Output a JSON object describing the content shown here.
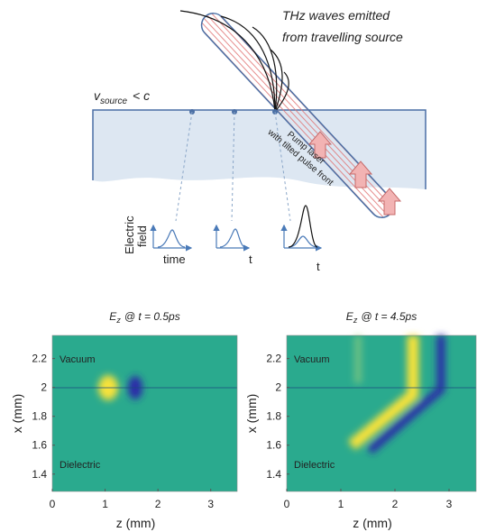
{
  "diagram": {
    "caption_lines": [
      "THz waves emitted",
      "from travelling source"
    ],
    "velocity": {
      "symbol": "v",
      "subscript": "source",
      "relation": "< c"
    },
    "laser_lines": [
      "Pump laser",
      "with tilted pulse front"
    ],
    "field_label_lines": [
      "Electric",
      "field"
    ],
    "time_labels": [
      "time",
      "t",
      "t"
    ]
  },
  "chart_data": [
    {
      "type": "heatmap",
      "title": {
        "symbol": "E",
        "subscript": "z",
        "rest": "@ t = 0.5ps"
      },
      "xlabel": "z (mm)",
      "ylabel": "x (mm)",
      "xlim": [
        0,
        3.5
      ],
      "ylim": [
        1.28,
        2.36
      ],
      "xticks": [
        0,
        1,
        2,
        3
      ],
      "yticks": [
        1.4,
        1.6,
        1.8,
        2,
        2.2
      ],
      "annotations": [
        "Vacuum",
        "Dielectric"
      ]
    },
    {
      "type": "heatmap",
      "title": {
        "symbol": "E",
        "subscript": "z",
        "rest": "@ t = 4.5ps"
      },
      "xlabel": "z (mm)",
      "ylabel": "x (mm)",
      "xlim": [
        0,
        3.5
      ],
      "ylim": [
        1.28,
        2.36
      ],
      "xticks": [
        0,
        1,
        2,
        3
      ],
      "yticks": [
        1.4,
        1.6,
        1.8,
        2,
        2.2
      ],
      "annotations": [
        "Vacuum",
        "Dielectric"
      ]
    }
  ]
}
